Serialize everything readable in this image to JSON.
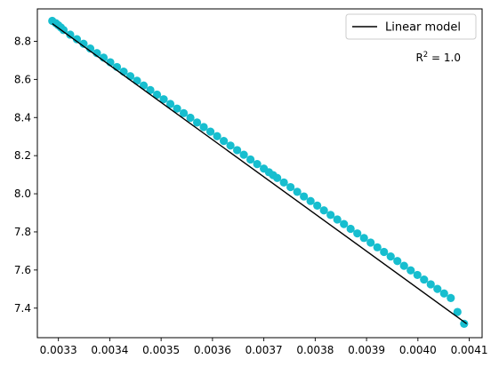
{
  "chart_data": {
    "type": "scatter",
    "xlim": [
      0.003259,
      0.004125
    ],
    "ylim": [
      7.245,
      8.97
    ],
    "xticks": [
      0.0033,
      0.0034,
      0.0035,
      0.0036,
      0.0037,
      0.0038,
      0.0039,
      0.004,
      0.0041
    ],
    "xtick_labels": [
      "0.0033",
      "0.0034",
      "0.0035",
      "0.0036",
      "0.0037",
      "0.0038",
      "0.0039",
      "0.0040",
      "0.0041"
    ],
    "yticks": [
      7.4,
      7.6,
      7.8,
      8.0,
      8.2,
      8.4,
      8.6,
      8.8
    ],
    "ytick_labels": [
      "7.4",
      "7.6",
      "7.8",
      "8.0",
      "8.2",
      "8.4",
      "8.6",
      "8.8"
    ],
    "scatter_color": "#17becf",
    "line_color": "#000000",
    "grid": false,
    "legend_position": "top-right",
    "series": [
      {
        "name": "",
        "kind": "points",
        "x": [
          0.003288,
          0.003295,
          0.0033,
          0.003305,
          0.00331,
          0.003323,
          0.003336,
          0.003349,
          0.003362,
          0.003375,
          0.003388,
          0.003401,
          0.003414,
          0.003427,
          0.00344,
          0.003453,
          0.003466,
          0.003479,
          0.003492,
          0.003505,
          0.003518,
          0.003531,
          0.003544,
          0.003557,
          0.00357,
          0.003583,
          0.003596,
          0.003609,
          0.003622,
          0.003635,
          0.003648,
          0.003661,
          0.003674,
          0.003687,
          0.0037,
          0.00371,
          0.003718,
          0.003726,
          0.003739,
          0.003752,
          0.003765,
          0.003778,
          0.003791,
          0.003804,
          0.003817,
          0.00383,
          0.003843,
          0.003856,
          0.003869,
          0.003882,
          0.003895,
          0.003908,
          0.003921,
          0.003934,
          0.003947,
          0.00396,
          0.003973,
          0.003986,
          0.003999,
          0.004012,
          0.004025,
          0.004038,
          0.004051,
          0.004064,
          0.004077,
          0.00409
        ],
        "y": [
          8.907,
          8.895,
          8.884,
          8.872,
          8.859,
          8.835,
          8.811,
          8.787,
          8.762,
          8.738,
          8.714,
          8.69,
          8.665,
          8.641,
          8.617,
          8.593,
          8.568,
          8.544,
          8.52,
          8.496,
          8.471,
          8.447,
          8.423,
          8.399,
          8.374,
          8.35,
          8.326,
          8.302,
          8.277,
          8.253,
          8.229,
          8.205,
          8.18,
          8.156,
          8.132,
          8.113,
          8.098,
          8.083,
          8.059,
          8.035,
          8.01,
          7.986,
          7.962,
          7.938,
          7.913,
          7.889,
          7.865,
          7.841,
          7.816,
          7.792,
          7.768,
          7.744,
          7.719,
          7.695,
          7.671,
          7.647,
          7.622,
          7.598,
          7.574,
          7.55,
          7.525,
          7.501,
          7.477,
          7.453,
          7.38,
          7.318
        ]
      },
      {
        "name": "Linear model",
        "kind": "line",
        "x": [
          0.003288,
          0.004095
        ],
        "y": [
          8.893,
          7.318
        ]
      }
    ],
    "legend": [
      {
        "label": "Linear model",
        "marker": "line"
      }
    ],
    "annotation": {
      "prefix": "R",
      "superscript": "2",
      "suffix": " = 1.0"
    }
  }
}
